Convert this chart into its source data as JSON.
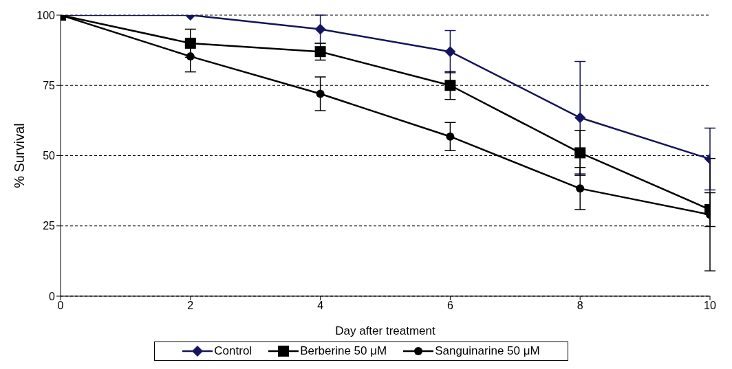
{
  "chart_data": {
    "type": "line",
    "xlabel": "Day after treatment",
    "ylabel": "% Survival",
    "x": [
      0,
      2,
      4,
      6,
      8,
      10
    ],
    "xlim": [
      0,
      10
    ],
    "xticks": [
      0,
      2,
      4,
      6,
      8,
      10
    ],
    "ylim": [
      0,
      100
    ],
    "yticks": [
      0,
      25,
      50,
      75,
      100
    ],
    "grid": "y",
    "legend": "bottom",
    "line_style": "solid",
    "series": [
      {
        "name": "Control",
        "color": "#14145a",
        "marker": "diamond",
        "values": [
          100,
          100,
          95,
          87,
          63.5,
          48.8
        ],
        "errors": [
          null,
          null,
          5,
          7.5,
          20,
          11
        ]
      },
      {
        "name": "Berberine 50 μM",
        "color": "#000000",
        "marker": "square",
        "values": [
          100,
          90,
          87,
          75,
          51,
          30.8
        ],
        "errors": [
          null,
          5,
          3,
          5,
          8,
          6
        ]
      },
      {
        "name": "Sanguinarine 50 μM",
        "color": "#000000",
        "marker": "circle",
        "values": [
          100,
          85.3,
          72,
          56.8,
          38.3,
          29
        ],
        "errors": [
          null,
          5.5,
          6,
          5,
          7.5,
          20
        ]
      }
    ]
  }
}
